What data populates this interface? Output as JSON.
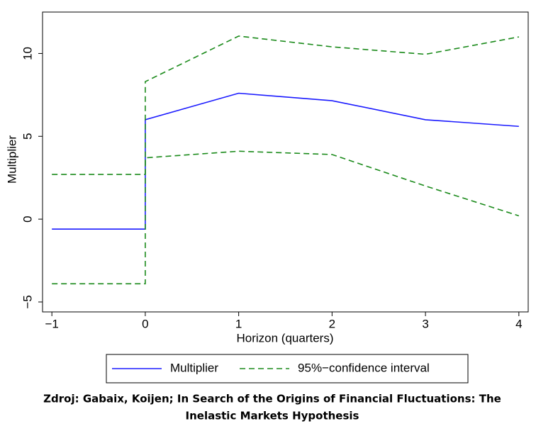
{
  "chart_data": {
    "type": "line",
    "x": [
      -1,
      0,
      0,
      1,
      2,
      3,
      4
    ],
    "series": [
      {
        "name": "Multiplier",
        "color": "#1a1aff",
        "dash": false,
        "values": [
          -0.6,
          -0.6,
          6.0,
          7.6,
          7.15,
          6.0,
          5.6
        ]
      },
      {
        "name": "95%−confidence interval",
        "color": "#1a8a1a",
        "dash": true,
        "values": [
          2.7,
          2.7,
          8.3,
          11.05,
          10.4,
          9.95,
          11.0
        ]
      },
      {
        "color": "#1a8a1a",
        "dash": true,
        "values": [
          -3.9,
          -3.9,
          3.7,
          4.1,
          3.9,
          2.0,
          0.2
        ]
      }
    ],
    "xlabel": "Horizon (quarters)",
    "ylabel": "Multiplier",
    "xlim": [
      -1.1,
      4.1
    ],
    "ylim": [
      -5.6,
      12.5
    ],
    "xticks": [
      {
        "value": -1,
        "label": "−1"
      },
      0,
      1,
      2,
      3,
      4
    ],
    "yticks": [
      {
        "value": -5,
        "label": "−5"
      },
      0,
      5,
      10
    ],
    "caption": [
      "Zdroj: Gabaix, Koijen; In Search of the Origins of Financial Fluctuations: The",
      "Inelastic Markets Hypothesis"
    ]
  }
}
